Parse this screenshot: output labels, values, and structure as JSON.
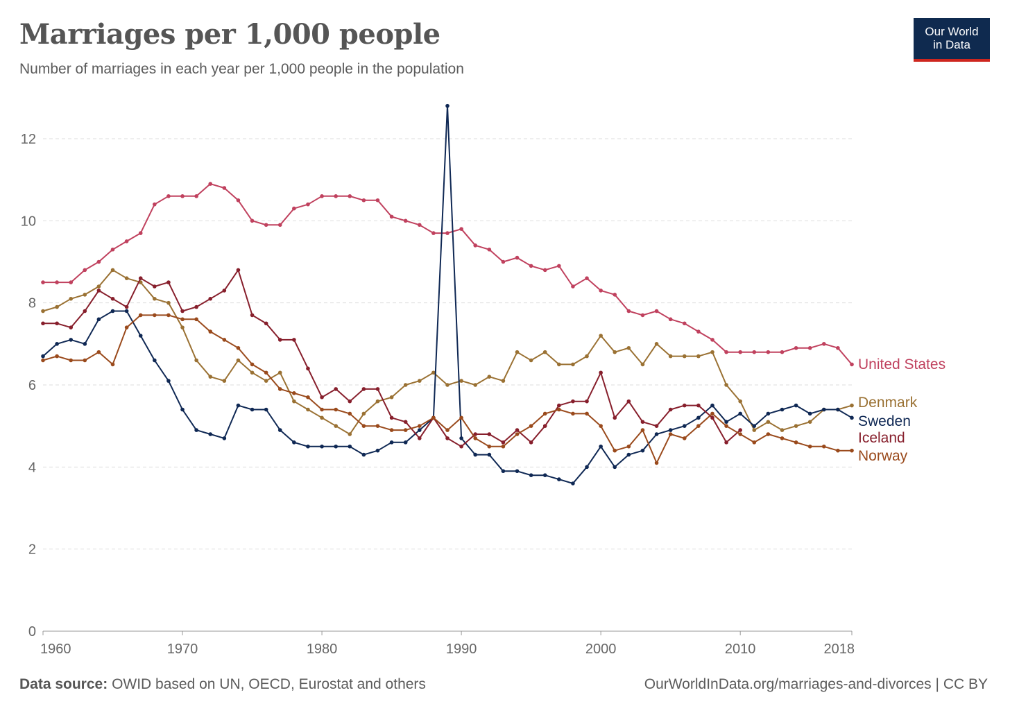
{
  "header": {
    "title": "Marriages per 1,000 people",
    "subtitle": "Number of marriages in each year per 1,000 people in the population"
  },
  "logo": {
    "line1": "Our World",
    "line2": "in Data"
  },
  "footer": {
    "source_label": "Data source:",
    "source_text": "OWID based on UN, OECD, Eurostat and others",
    "url": "OurWorldInData.org/marriages-and-divorces",
    "license": "| CC BY"
  },
  "chart_data": {
    "type": "line",
    "title": "Marriages per 1,000 people",
    "subtitle": "Number of marriages in each year per 1,000 people in the population",
    "xlabel": "",
    "ylabel": "",
    "xlim": [
      1960,
      2018
    ],
    "ylim": [
      0,
      13
    ],
    "x_ticks": [
      1960,
      1970,
      1980,
      1990,
      2000,
      2010,
      2018
    ],
    "y_ticks": [
      0,
      2,
      4,
      6,
      8,
      10,
      12
    ],
    "grid": "horizontal dashed",
    "legend": "right end labels",
    "x": [
      1960,
      1961,
      1962,
      1963,
      1964,
      1965,
      1966,
      1967,
      1968,
      1969,
      1970,
      1971,
      1972,
      1973,
      1974,
      1975,
      1976,
      1977,
      1978,
      1979,
      1980,
      1981,
      1982,
      1983,
      1984,
      1985,
      1986,
      1987,
      1988,
      1989,
      1990,
      1991,
      1992,
      1993,
      1994,
      1995,
      1996,
      1997,
      1998,
      1999,
      2000,
      2001,
      2002,
      2003,
      2004,
      2005,
      2006,
      2007,
      2008,
      2009,
      2010,
      2011,
      2012,
      2013,
      2014,
      2015,
      2016,
      2017,
      2018
    ],
    "series": [
      {
        "name": "United States",
        "color": "#c0415e",
        "values": [
          8.5,
          8.5,
          8.5,
          8.8,
          9.0,
          9.3,
          9.5,
          9.7,
          10.4,
          10.6,
          10.6,
          10.6,
          10.9,
          10.8,
          10.5,
          10.0,
          9.9,
          9.9,
          10.3,
          10.4,
          10.6,
          10.6,
          10.6,
          10.5,
          10.5,
          10.1,
          10.0,
          9.9,
          9.7,
          9.7,
          9.8,
          9.4,
          9.3,
          9.0,
          9.1,
          8.9,
          8.8,
          8.9,
          8.4,
          8.6,
          8.3,
          8.2,
          7.8,
          7.7,
          7.8,
          7.6,
          7.5,
          7.3,
          7.1,
          6.8,
          6.8,
          6.8,
          6.8,
          6.8,
          6.9,
          6.9,
          7.0,
          6.9,
          6.5
        ]
      },
      {
        "name": "Denmark",
        "color": "#9a7133",
        "values": [
          7.8,
          7.9,
          8.1,
          8.2,
          8.4,
          8.8,
          8.6,
          8.5,
          8.1,
          8.0,
          7.4,
          6.6,
          6.2,
          6.1,
          6.6,
          6.3,
          6.1,
          6.3,
          5.6,
          5.4,
          5.2,
          5.0,
          4.8,
          5.3,
          5.6,
          5.7,
          6.0,
          6.1,
          6.3,
          6.0,
          6.1,
          6.0,
          6.2,
          6.1,
          6.8,
          6.6,
          6.8,
          6.5,
          6.5,
          6.7,
          7.2,
          6.8,
          6.9,
          6.5,
          7.0,
          6.7,
          6.7,
          6.7,
          6.8,
          6.0,
          5.6,
          4.9,
          5.1,
          4.9,
          5.0,
          5.1,
          5.4,
          5.4,
          5.5
        ]
      },
      {
        "name": "Sweden",
        "color": "#0f2854",
        "values": [
          6.7,
          7.0,
          7.1,
          7.0,
          7.6,
          7.8,
          7.8,
          7.2,
          6.6,
          6.1,
          5.4,
          4.9,
          4.8,
          4.7,
          5.5,
          5.4,
          5.4,
          4.9,
          4.6,
          4.5,
          4.5,
          4.5,
          4.5,
          4.3,
          4.4,
          4.6,
          4.6,
          4.9,
          5.2,
          12.8,
          4.7,
          4.3,
          4.3,
          3.9,
          3.9,
          3.8,
          3.8,
          3.7,
          3.6,
          4.0,
          4.5,
          4.0,
          4.3,
          4.4,
          4.8,
          4.9,
          5.0,
          5.2,
          5.5,
          5.1,
          5.3,
          5.0,
          5.3,
          5.4,
          5.5,
          5.3,
          5.4,
          5.4,
          5.2
        ]
      },
      {
        "name": "Iceland",
        "color": "#871f2c",
        "values": [
          7.5,
          7.5,
          7.4,
          7.8,
          8.3,
          8.1,
          7.9,
          8.6,
          8.4,
          8.5,
          7.8,
          7.9,
          8.1,
          8.3,
          8.8,
          7.7,
          7.5,
          7.1,
          7.1,
          6.4,
          5.7,
          5.9,
          5.6,
          5.9,
          5.9,
          5.2,
          5.1,
          4.7,
          5.2,
          4.7,
          4.5,
          4.8,
          4.8,
          4.6,
          4.9,
          4.6,
          5.0,
          5.5,
          5.6,
          5.6,
          6.3,
          5.2,
          5.6,
          5.1,
          5.0,
          5.4,
          5.5,
          5.5,
          5.2,
          4.6,
          4.9,
          null,
          null,
          null,
          null,
          null,
          null,
          null,
          null
        ]
      },
      {
        "name": "Norway",
        "color": "#9a4a1c",
        "values": [
          6.6,
          6.7,
          6.6,
          6.6,
          6.8,
          6.5,
          7.4,
          7.7,
          7.7,
          7.7,
          7.6,
          7.6,
          7.3,
          7.1,
          6.9,
          6.5,
          6.3,
          5.9,
          5.8,
          5.7,
          5.4,
          5.4,
          5.3,
          5.0,
          5.0,
          4.9,
          4.9,
          5.0,
          5.2,
          4.9,
          5.2,
          4.7,
          4.5,
          4.5,
          4.8,
          5.0,
          5.3,
          5.4,
          5.3,
          5.3,
          5.0,
          4.4,
          4.5,
          4.9,
          4.1,
          4.8,
          4.7,
          5.0,
          5.3,
          5.0,
          4.8,
          4.6,
          4.8,
          4.7,
          4.6,
          4.5,
          4.5,
          4.4,
          4.4
        ]
      }
    ]
  }
}
